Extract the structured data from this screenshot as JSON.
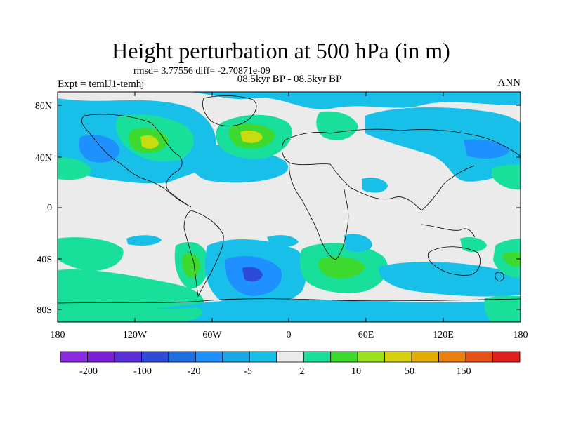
{
  "title": "Height perturbation at 500 hPa (in m)",
  "stats_text": "rmsd= 3.77556 diff= -2.70871e-09",
  "experiment_text": "Expt = temlJ1-temhj",
  "period_text": "08.5kyr BP - 08.5kyr BP",
  "season_text": "ANN",
  "lat_ticks": [
    "80N",
    "40N",
    "0",
    "40S",
    "80S"
  ],
  "lon_ticks": [
    "180",
    "120W",
    "60W",
    "0",
    "60E",
    "120E",
    "180"
  ],
  "colorbar": {
    "colors": [
      "#8a2be2",
      "#7a1fd6",
      "#5a2fd8",
      "#2e4bd8",
      "#1f6fe0",
      "#1e90ff",
      "#18a8e6",
      "#15bfe6",
      "#ebebeb",
      "#18df9a",
      "#3ed92e",
      "#9de01c",
      "#d6d10e",
      "#e6ac00",
      "#eb7f10",
      "#e8501a",
      "#e02020"
    ],
    "labels": [
      "-200",
      "-100",
      "-20",
      "-5",
      "2",
      "10",
      "50",
      "150"
    ]
  },
  "field_colors": {
    "neutral": "#ebebeb",
    "light_neg": "#18bfe8",
    "mid_neg": "#1e90ff",
    "light_pos": "#18df9a",
    "mid_pos": "#3ed92e",
    "strong_pos": "#c8dc10"
  }
}
